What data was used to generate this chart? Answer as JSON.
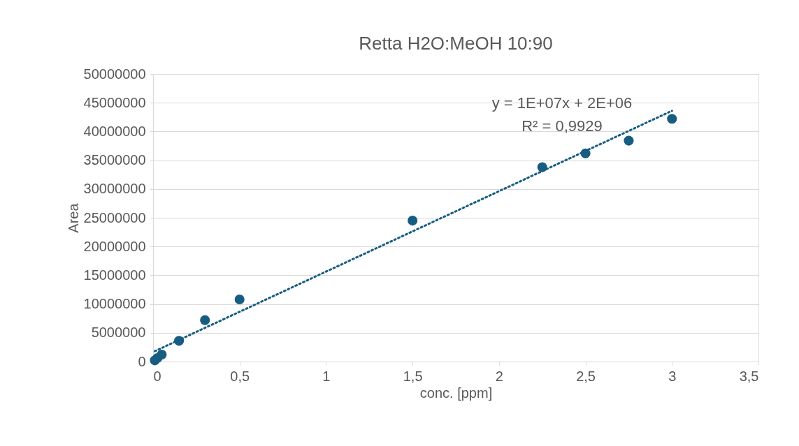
{
  "chart_data": {
    "type": "scatter",
    "title": "Retta H2O:MeOH 10:90",
    "xlabel": "conc. [ppm]",
    "ylabel": "Area",
    "x": [
      0.01,
      0.025,
      0.05,
      0.15,
      0.3,
      0.5,
      1.5,
      2.25,
      2.5,
      2.75,
      3
    ],
    "series": [
      {
        "marker": "circle",
        "color": "#175d82",
        "values": [
          200000,
          600000,
          1200000,
          3600000,
          7200000,
          10800000,
          24500000,
          33800000,
          36200000,
          38400000,
          42200000
        ]
      },
      {
        "type": "line",
        "line_style": "dotted",
        "color": "#175d82",
        "x": [
          0.01,
          3
        ],
        "values": [
          1800000,
          43600000
        ]
      }
    ],
    "annotations": [
      "y = 1E+07x + 2E+06",
      "R² = 0,9929"
    ],
    "xlim": [
      0,
      3.5
    ],
    "xticks": [
      0,
      {
        "value": 0.5,
        "label": "0,5"
      },
      1,
      {
        "value": 1.5,
        "label": "1,5"
      },
      2,
      {
        "value": 2.5,
        "label": "2,5"
      },
      3,
      {
        "value": 3.5,
        "label": "3,5"
      }
    ],
    "ylim": [
      0,
      50000000
    ],
    "yticks": [
      0,
      5000000,
      10000000,
      15000000,
      20000000,
      25000000,
      30000000,
      35000000,
      40000000,
      45000000,
      50000000
    ],
    "grid": "y"
  }
}
